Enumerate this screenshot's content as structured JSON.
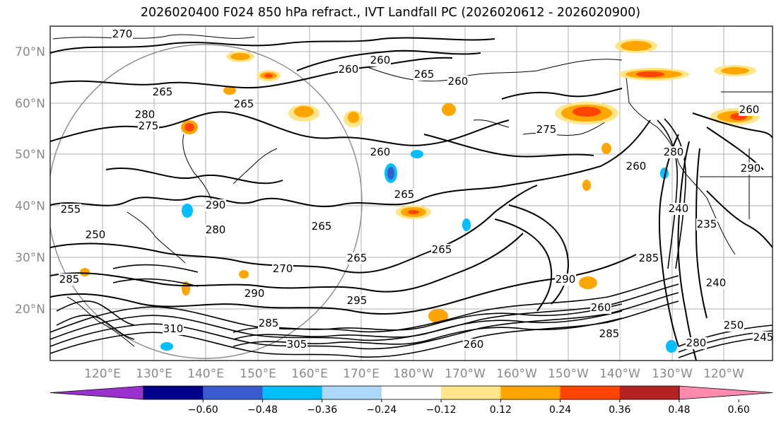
{
  "title": "2026020400 F024 850 hPa refract., IVT Landfall PC (2026020612 - 2026020900)",
  "lat_labels": [
    "70°N",
    "60°N",
    "50°N",
    "40°N",
    "30°N",
    "20°N"
  ],
  "lon_labels": [
    "120°E",
    "130°E",
    "140°E",
    "150°E",
    "160°E",
    "170°E",
    "180°W",
    "170°W",
    "160°W",
    "150°W",
    "140°W",
    "130°W",
    "120°W"
  ],
  "colorbar": {
    "ticks": [
      "−0.60",
      "−0.48",
      "−0.36",
      "−0.24",
      "−0.12",
      "0.12",
      "0.24",
      "0.36",
      "0.48",
      "0.60"
    ],
    "colors": [
      "#9932cc",
      "#00008b",
      "#3a5bcd",
      "#00bfff",
      "#add8f7",
      "#ffffff",
      "#ffe68a",
      "#ffa500",
      "#ff4500",
      "#b22222",
      "#ff8aaf"
    ]
  },
  "contour_labels": [
    "270",
    "265",
    "260",
    "260",
    "265",
    "280",
    "275",
    "265",
    "260",
    "260",
    "265",
    "255",
    "250",
    "290",
    "280",
    "265",
    "265",
    "270",
    "290",
    "265",
    "295",
    "285",
    "310",
    "285",
    "305",
    "260",
    "285",
    "280",
    "290",
    "260",
    "260",
    "240",
    "235",
    "260",
    "250",
    "245",
    "285",
    "275",
    "280",
    "285",
    "290",
    "240"
  ]
}
